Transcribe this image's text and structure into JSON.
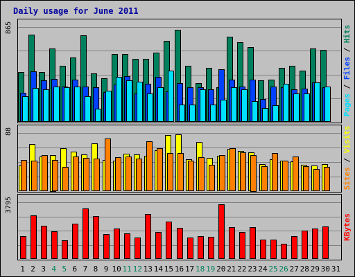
{
  "title": "Daily usage for June 2011",
  "colors": {
    "background": "#c0c0c0",
    "panel_border": "#000000",
    "gridline": "#808080",
    "title": "#0000a0",
    "hits": "#00805c",
    "files": "#0040ff",
    "pages": "#00e0ff",
    "visits": "#ffff00",
    "sites": "#ff8000",
    "kbytes": "#ff0000",
    "x_weekday": "#000000",
    "x_weekend": "#00805c"
  },
  "chart_data": [
    {
      "type": "bar",
      "panel": "top",
      "y_axis_label": "865",
      "ylim": [
        0,
        865
      ],
      "gridlines": true,
      "legend": {
        "position": "right",
        "items": [
          "Pages",
          "/",
          "Files",
          "/",
          "Hits"
        ]
      },
      "categories": [
        "1",
        "2",
        "3",
        "4",
        "5",
        "6",
        "7",
        "8",
        "9",
        "10",
        "11",
        "12",
        "13",
        "14",
        "15",
        "16",
        "17",
        "18",
        "19",
        "20",
        "21",
        "22",
        "23",
        "24",
        "25",
        "26",
        "27",
        "28",
        "29",
        "30",
        "31"
      ],
      "series": [
        {
          "name": "Hits",
          "values": [
            452,
            797,
            452,
            667,
            510,
            590,
            790,
            440,
            395,
            618,
            620,
            574,
            577,
            633,
            736,
            842,
            510,
            354,
            490,
            317,
            776,
            723,
            683,
            380,
            387,
            493,
            510,
            470,
            667,
            654,
            0
          ]
        },
        {
          "name": "Files",
          "values": [
            266,
            459,
            377,
            389,
            324,
            383,
            319,
            315,
            273,
            341,
            418,
            257,
            349,
            410,
            280,
            354,
            315,
            315,
            296,
            482,
            384,
            319,
            386,
            211,
            324,
            315,
            296,
            303,
            361,
            315,
            0
          ]
        },
        {
          "name": "Pages",
          "values": [
            232,
            307,
            298,
            324,
            315,
            324,
            235,
            117,
            285,
            409,
            380,
            365,
            257,
            318,
            470,
            157,
            157,
            296,
            157,
            201,
            315,
            295,
            192,
            124,
            150,
            348,
            257,
            257,
            363,
            320,
            0
          ]
        }
      ]
    },
    {
      "type": "bar",
      "panel": "middle",
      "y_axis_label": "88",
      "ylim": [
        0,
        88
      ],
      "gridlines": true,
      "legend": {
        "position": "right",
        "items": [
          "Sites",
          "/",
          "Visits"
        ]
      },
      "categories": [
        "1",
        "2",
        "3",
        "4",
        "5",
        "6",
        "7",
        "8",
        "9",
        "10",
        "11",
        "12",
        "13",
        "14",
        "15",
        "16",
        "17",
        "18",
        "19",
        "20",
        "21",
        "22",
        "23",
        "24",
        "25",
        "26",
        "27",
        "28",
        "29",
        "30",
        "31"
      ],
      "series": [
        {
          "name": "Visits",
          "values": [
            39,
            71,
            52,
            55,
            65,
            60,
            56,
            72,
            47,
            46,
            57,
            56,
            53,
            62,
            85,
            86,
            48,
            74,
            50,
            53,
            64,
            61,
            59,
            41,
            48,
            46,
            45,
            40,
            39,
            41,
            0
          ]
        },
        {
          "name": "Sites",
          "values": [
            47,
            46,
            54,
            47,
            37,
            52,
            50,
            49,
            80,
            51,
            52,
            49,
            75,
            65,
            58,
            58,
            46,
            51,
            40,
            54,
            65,
            59,
            55,
            38,
            58,
            46,
            52,
            38,
            34,
            37,
            0
          ]
        }
      ]
    },
    {
      "type": "bar",
      "panel": "bottom",
      "y_axis_label": "3795",
      "ylim": [
        0,
        3795
      ],
      "gridlines": true,
      "legend": {
        "position": "right",
        "items": [
          "KBytes"
        ]
      },
      "categories": [
        "1",
        "2",
        "3",
        "4",
        "5",
        "6",
        "7",
        "8",
        "9",
        "10",
        "11",
        "12",
        "13",
        "14",
        "15",
        "16",
        "17",
        "18",
        "19",
        "20",
        "21",
        "22",
        "23",
        "24",
        "25",
        "26",
        "27",
        "28",
        "29",
        "30",
        "31"
      ],
      "series": [
        {
          "name": "KBytes",
          "values": [
            1517,
            2910,
            2240,
            1832,
            1260,
            2353,
            3367,
            2855,
            1686,
            2024,
            1719,
            1416,
            3005,
            1809,
            2482,
            2071,
            1416,
            1517,
            1473,
            3669,
            2136,
            1797,
            2124,
            1301,
            1301,
            1035,
            1530,
            1876,
            2035,
            2186,
            0
          ]
        }
      ]
    }
  ],
  "x_axis": {
    "labels": [
      "1",
      "2",
      "3",
      "4",
      "5",
      "6",
      "7",
      "8",
      "9",
      "10",
      "11",
      "12",
      "13",
      "14",
      "15",
      "16",
      "17",
      "18",
      "19",
      "20",
      "21",
      "22",
      "23",
      "24",
      "25",
      "26",
      "27",
      "28",
      "29",
      "30",
      "31"
    ],
    "weekend_days": [
      "4",
      "5",
      "11",
      "12",
      "18",
      "19",
      "25",
      "26"
    ]
  }
}
